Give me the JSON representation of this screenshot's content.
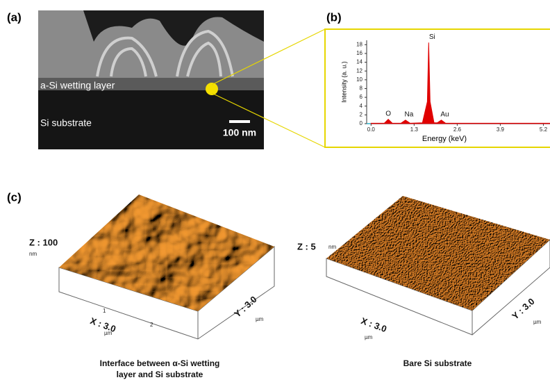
{
  "panel_labels": [
    "(a)",
    "(b)",
    "(c)"
  ],
  "sem": {
    "wetting_layer": "a-Si wetting layer",
    "substrate": "Si substrate",
    "scale_bar": "100 nm"
  },
  "chart_data": {
    "type": "line",
    "x_label": "Energy (keV)",
    "y_label": "Intensity (a. u.)",
    "x": [
      0,
      0.4,
      0.52,
      0.64,
      0.9,
      1.04,
      1.18,
      1.55,
      1.7,
      1.74,
      1.78,
      1.9,
      2.0,
      2.12,
      2.25,
      2.6,
      5.4
    ],
    "values": [
      0.1,
      0.1,
      1.0,
      0.1,
      0.1,
      0.8,
      0.1,
      0.2,
      5,
      18.5,
      5,
      0.2,
      0.2,
      0.8,
      0.1,
      0.1,
      0.1
    ],
    "color": "#e00000",
    "baseline_color": "#2ab0c8",
    "xlim": [
      -0.3,
      5.4
    ],
    "ylim": [
      0,
      19
    ],
    "xticks": [
      {
        "value": 0,
        "label": "0.0"
      },
      1.3,
      2.6,
      3.9,
      5.2
    ],
    "yticks": [
      0,
      2,
      4,
      6,
      8,
      10,
      12,
      14,
      16,
      18
    ],
    "annotations": [
      {
        "text": "O",
        "x": 0.52,
        "y": 1.0
      },
      {
        "text": "Na",
        "x": 1.04,
        "y": 0.8
      },
      {
        "text": "Si",
        "x": 1.74,
        "y": 18.5
      },
      {
        "text": "Au",
        "x": 2.12,
        "y": 0.8
      }
    ]
  },
  "afm": [
    {
      "z_label": "Z : 100",
      "z_unit": "nm",
      "x_label": "X : 3.0",
      "x_unit": "µm",
      "y_label": "Y : 3.0",
      "y_unit": "µm",
      "x_ticks": [
        "1",
        "2"
      ],
      "caption": [
        "Interface between α-Si wetting",
        "layer and Si substrate"
      ]
    },
    {
      "z_label": "Z : 5",
      "z_unit": "nm",
      "x_label": "X : 3.0",
      "x_unit": "µm",
      "y_label": "Y : 3.0",
      "y_unit": "µm",
      "caption": [
        "Bare Si substrate"
      ]
    }
  ]
}
